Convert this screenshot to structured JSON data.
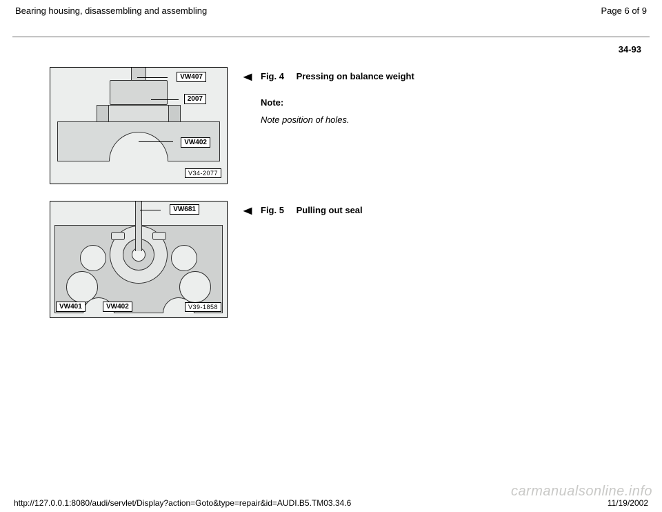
{
  "header": {
    "title": "Bearing housing, disassembling and assembling",
    "page_label": "Page 6 of 9"
  },
  "section_code": "34-93",
  "fig4": {
    "fig_label": "Fig. 4",
    "fig_title": "Pressing on balance weight",
    "note_label": "Note:",
    "note_body": "Note position of holes.",
    "callout_top": "VW407",
    "callout_mid": "2007",
    "callout_bottom": "VW402",
    "ref": "V34-2077",
    "colors": {
      "bg": "#eceeed",
      "plate": "#d8dbda",
      "metal": "#d5d7d6",
      "stroke": "#333333"
    }
  },
  "fig5": {
    "fig_label": "Fig. 5",
    "fig_title": "Pulling out seal",
    "callout_top": "VW681",
    "callout_bl": "VW401",
    "callout_bc": "VW402",
    "ref": "V39-1858",
    "colors": {
      "bg": "#eceeed",
      "plate": "#cfd1d0",
      "hub": "#e4e6e5",
      "stroke": "#333333"
    }
  },
  "footer": {
    "url": "http://127.0.0.1:8080/audi/servlet/Display?action=Goto&type=repair&id=AUDI.B5.TM03.34.6",
    "date": "11/19/2002"
  },
  "watermark": "carmanualsonline.info"
}
